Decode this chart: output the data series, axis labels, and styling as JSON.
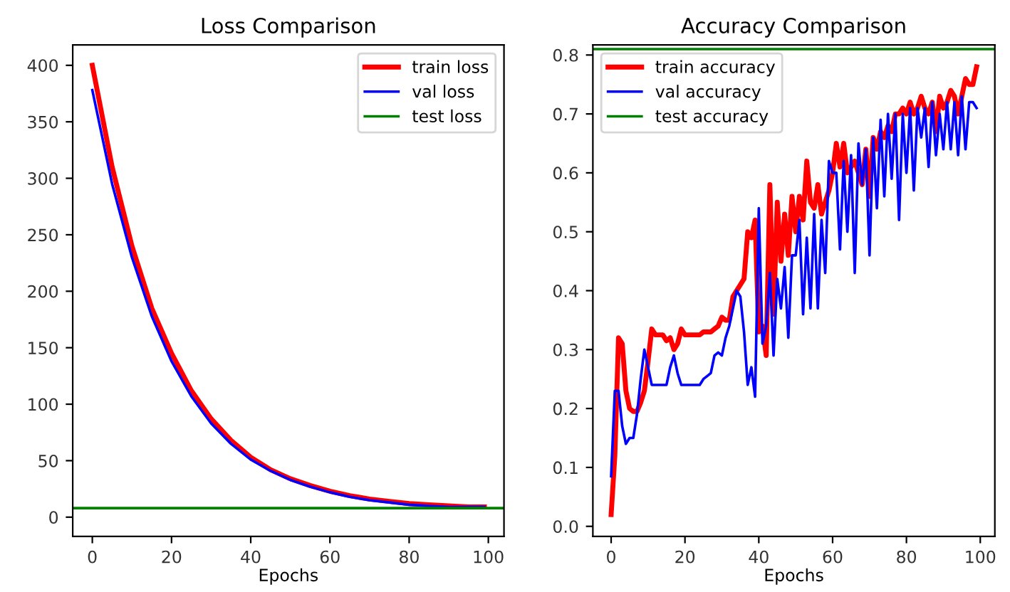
{
  "chart_data": [
    {
      "type": "line",
      "title": "Loss Comparison",
      "xlabel": "Epochs",
      "xlim": [
        -4.95,
        103.95
      ],
      "ylim": [
        -17,
        418
      ],
      "xticks": [
        0,
        20,
        40,
        60,
        80,
        100
      ],
      "yticks": [
        0,
        50,
        100,
        150,
        200,
        250,
        300,
        350,
        400
      ],
      "grid": false,
      "legend": "top right",
      "series": [
        {
          "name": "train loss",
          "color": "#ff0000",
          "x": [
            0,
            5,
            10,
            15,
            20,
            25,
            30,
            35,
            40,
            45,
            50,
            55,
            60,
            65,
            70,
            75,
            80,
            85,
            90,
            95,
            99
          ],
          "values": [
            400,
            310,
            240,
            185,
            145,
            112,
            87,
            68,
            53,
            42,
            34,
            28,
            23,
            19,
            16,
            14,
            12,
            11,
            10,
            9,
            9
          ]
        },
        {
          "name": "val loss",
          "color": "#0000ff",
          "x": [
            0,
            5,
            10,
            15,
            20,
            25,
            30,
            35,
            40,
            45,
            50,
            55,
            60,
            65,
            70,
            75,
            80,
            85,
            90,
            95,
            99
          ],
          "values": [
            378,
            295,
            230,
            178,
            138,
            107,
            83,
            65,
            51,
            41,
            33,
            27,
            22,
            18,
            15,
            13,
            11,
            10,
            9,
            9,
            9
          ]
        }
      ],
      "ref_lines": [
        {
          "axis": "y",
          "value": 8,
          "label": "test loss",
          "color": "#008000"
        }
      ]
    },
    {
      "type": "line",
      "title": "Accuracy Comparison",
      "xlabel": "Epochs",
      "x": [
        0,
        1,
        2,
        3,
        4,
        5,
        6,
        7,
        8,
        9,
        10,
        11,
        12,
        13,
        14,
        15,
        16,
        17,
        18,
        19,
        20,
        21,
        22,
        23,
        24,
        25,
        26,
        27,
        28,
        29,
        30,
        31,
        32,
        33,
        34,
        35,
        36,
        37,
        38,
        39,
        40,
        41,
        42,
        43,
        44,
        45,
        46,
        47,
        48,
        49,
        50,
        51,
        52,
        53,
        54,
        55,
        56,
        57,
        58,
        59,
        60,
        61,
        62,
        63,
        64,
        65,
        66,
        67,
        68,
        69,
        70,
        71,
        72,
        73,
        74,
        75,
        76,
        77,
        78,
        79,
        80,
        81,
        82,
        83,
        84,
        85,
        86,
        87,
        88,
        89,
        90,
        91,
        92,
        93,
        94,
        95,
        96,
        97,
        98,
        99
      ],
      "xlim": [
        -4.95,
        103.95
      ],
      "ylim": [
        -0.017,
        0.817
      ],
      "xticks": [
        0,
        20,
        40,
        60,
        80,
        100
      ],
      "yticks": [
        {
          "value": 0,
          "label": "0.0"
        },
        0.1,
        0.2,
        0.3,
        0.4,
        0.5,
        0.6,
        0.7,
        0.8
      ],
      "grid": false,
      "legend": "top left",
      "series": [
        {
          "name": "train accuracy",
          "color": "#ff0000",
          "values": [
            0.02,
            0.12,
            0.32,
            0.31,
            0.23,
            0.2,
            0.195,
            0.195,
            0.21,
            0.23,
            0.28,
            0.335,
            0.325,
            0.325,
            0.325,
            0.315,
            0.32,
            0.3,
            0.31,
            0.335,
            0.325,
            0.325,
            0.325,
            0.325,
            0.325,
            0.33,
            0.33,
            0.33,
            0.335,
            0.34,
            0.355,
            0.35,
            0.35,
            0.39,
            0.4,
            0.41,
            0.42,
            0.5,
            0.49,
            0.52,
            0.33,
            0.34,
            0.29,
            0.58,
            0.36,
            0.55,
            0.45,
            0.53,
            0.46,
            0.56,
            0.5,
            0.56,
            0.52,
            0.62,
            0.55,
            0.54,
            0.58,
            0.53,
            0.55,
            0.57,
            0.6,
            0.65,
            0.61,
            0.65,
            0.6,
            0.61,
            0.62,
            0.6,
            0.58,
            0.64,
            0.56,
            0.66,
            0.64,
            0.67,
            0.66,
            0.68,
            0.67,
            0.7,
            0.7,
            0.71,
            0.7,
            0.72,
            0.7,
            0.71,
            0.73,
            0.71,
            0.7,
            0.72,
            0.67,
            0.73,
            0.71,
            0.72,
            0.74,
            0.73,
            0.7,
            0.73,
            0.76,
            0.75,
            0.75,
            0.78
          ]
        },
        {
          "name": "val accuracy",
          "color": "#0000ff",
          "values": [
            0.085,
            0.23,
            0.23,
            0.17,
            0.14,
            0.15,
            0.15,
            0.19,
            0.25,
            0.3,
            0.27,
            0.24,
            0.24,
            0.24,
            0.24,
            0.24,
            0.27,
            0.29,
            0.26,
            0.24,
            0.24,
            0.24,
            0.24,
            0.24,
            0.24,
            0.25,
            0.255,
            0.26,
            0.29,
            0.295,
            0.29,
            0.32,
            0.34,
            0.37,
            0.4,
            0.39,
            0.33,
            0.24,
            0.27,
            0.22,
            0.54,
            0.31,
            0.34,
            0.43,
            0.29,
            0.42,
            0.37,
            0.44,
            0.32,
            0.46,
            0.46,
            0.52,
            0.36,
            0.49,
            0.37,
            0.53,
            0.37,
            0.52,
            0.43,
            0.62,
            0.6,
            0.6,
            0.47,
            0.62,
            0.5,
            0.63,
            0.43,
            0.65,
            0.58,
            0.64,
            0.46,
            0.66,
            0.54,
            0.69,
            0.56,
            0.7,
            0.59,
            0.7,
            0.52,
            0.7,
            0.6,
            0.71,
            0.57,
            0.71,
            0.66,
            0.71,
            0.61,
            0.72,
            0.63,
            0.7,
            0.64,
            0.72,
            0.64,
            0.72,
            0.63,
            0.73,
            0.64,
            0.72,
            0.72,
            0.71
          ]
        }
      ],
      "ref_lines": [
        {
          "axis": "y",
          "value": 0.81,
          "label": "test accuracy",
          "color": "#008000"
        }
      ]
    }
  ]
}
